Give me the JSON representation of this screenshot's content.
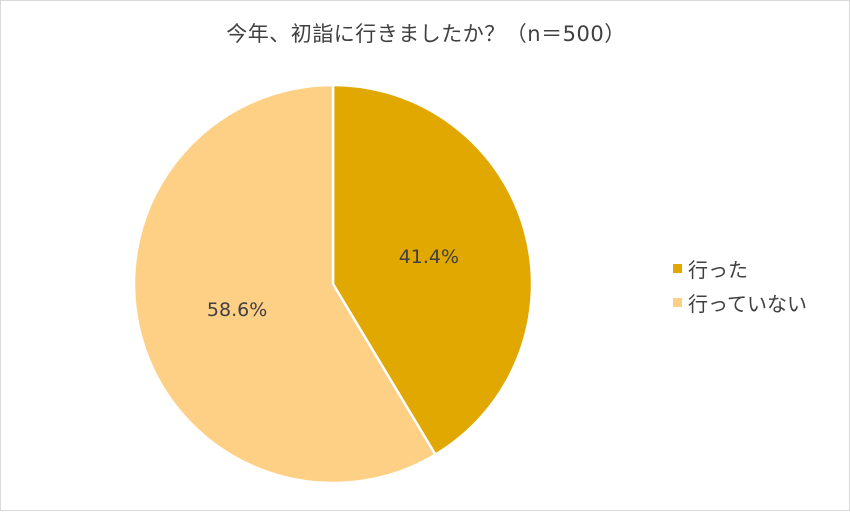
{
  "chart_data": {
    "type": "pie",
    "title": "今年、初詣に行きましたか？（n＝500）",
    "categories": [
      "行った",
      "行っていない"
    ],
    "values": [
      41.4,
      58.6
    ],
    "value_labels": [
      "41.4%",
      "58.6%"
    ],
    "colors": [
      "#e0a800",
      "#fdd086"
    ],
    "start_angle_deg": 0,
    "direction": "clockwise",
    "legend_position": "right"
  }
}
